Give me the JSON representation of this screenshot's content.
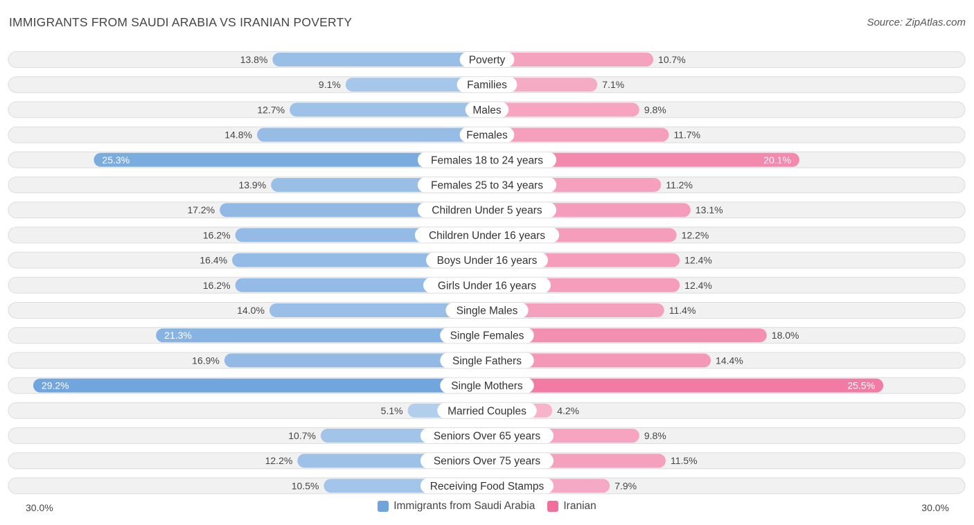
{
  "header": {
    "title": "IMMIGRANTS FROM SAUDI ARABIA VS IRANIAN POVERTY",
    "source": "Source: ZipAtlas.com"
  },
  "axis": {
    "left_label": "30.0%",
    "right_label": "30.0%"
  },
  "legend": {
    "left_label": "Immigrants from Saudi Arabia",
    "right_label": "Iranian"
  },
  "colors": {
    "left": "#6fa4dc",
    "right": "#f06f9b",
    "row_bg": "#f1f1f1",
    "row_border": "#dcdcdc"
  },
  "chart_data": {
    "type": "bar",
    "orientation": "horizontal-diverging",
    "title": "IMMIGRANTS FROM SAUDI ARABIA VS IRANIAN POVERTY",
    "xlim": [
      0,
      30
    ],
    "unit": "%",
    "categories": [
      "Poverty",
      "Families",
      "Males",
      "Females",
      "Females 18 to 24 years",
      "Females 25 to 34 years",
      "Children Under 5 years",
      "Children Under 16 years",
      "Boys Under 16 years",
      "Girls Under 16 years",
      "Single Males",
      "Single Females",
      "Single Fathers",
      "Single Mothers",
      "Married Couples",
      "Seniors Over 65 years",
      "Seniors Over 75 years",
      "Receiving Food Stamps"
    ],
    "series": [
      {
        "name": "Immigrants from Saudi Arabia",
        "values": [
          13.8,
          9.1,
          12.7,
          14.8,
          25.3,
          13.9,
          17.2,
          16.2,
          16.4,
          16.2,
          14.0,
          21.3,
          16.9,
          29.2,
          5.1,
          10.7,
          12.2,
          10.5
        ],
        "labels": [
          "13.8%",
          "9.1%",
          "12.7%",
          "14.8%",
          "25.3%",
          "13.9%",
          "17.2%",
          "16.2%",
          "16.4%",
          "16.2%",
          "14.0%",
          "21.3%",
          "16.9%",
          "29.2%",
          "5.1%",
          "10.7%",
          "12.2%",
          "10.5%"
        ]
      },
      {
        "name": "Iranian",
        "values": [
          10.7,
          7.1,
          9.8,
          11.7,
          20.1,
          11.2,
          13.1,
          12.2,
          12.4,
          12.4,
          11.4,
          18.0,
          14.4,
          25.5,
          4.2,
          9.8,
          11.5,
          7.9
        ],
        "labels": [
          "10.7%",
          "7.1%",
          "9.8%",
          "11.7%",
          "20.1%",
          "11.2%",
          "13.1%",
          "12.2%",
          "12.4%",
          "12.4%",
          "11.4%",
          "18.0%",
          "14.4%",
          "25.5%",
          "4.2%",
          "9.8%",
          "11.5%",
          "7.9%"
        ]
      }
    ]
  }
}
